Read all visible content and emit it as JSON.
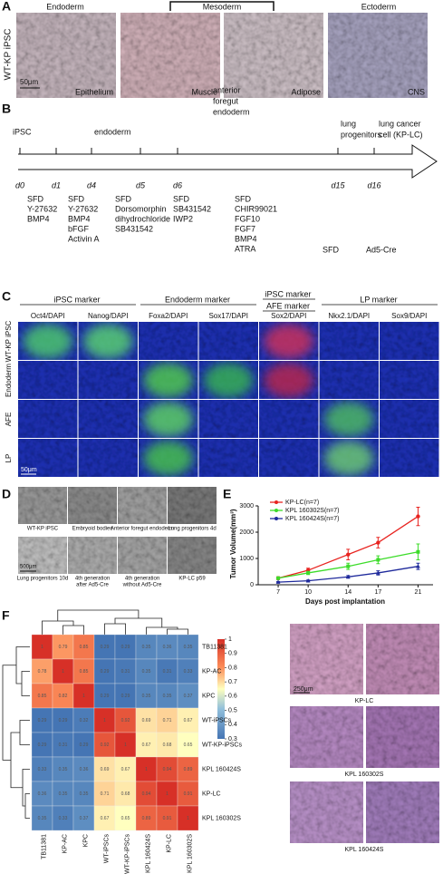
{
  "figure": {
    "panel_labels": [
      "A",
      "B",
      "C",
      "D",
      "E",
      "F"
    ],
    "a": {
      "row_label": "WT-KP iPSC",
      "layers": [
        "Endoderm",
        "Mesoderm",
        "Ectoderm"
      ],
      "tissues": [
        "Epithelium",
        "Muscle",
        "Adipose",
        "CNS"
      ],
      "scale_bar": "50μm"
    },
    "b": {
      "stages": [
        [
          "iPSC"
        ],
        [
          "endoderm"
        ],
        [
          "anterior",
          "foregut",
          "endoderm"
        ],
        [
          "lung",
          "progenitors"
        ],
        [
          "lung cancer",
          "cell (KP-LC)"
        ]
      ],
      "days": [
        "d0",
        "d1",
        "d4",
        "d5",
        "d6",
        "d15",
        "d16"
      ],
      "media": [
        [
          "SFD",
          "Y-27632",
          "BMP4"
        ],
        [
          "SFD",
          "Y-27632",
          "BMP4",
          "bFGF",
          "Activin A"
        ],
        [
          "SFD",
          "Dorsomorphin",
          "dihydrochloride",
          "SB431542"
        ],
        [
          "SFD",
          "SB431542",
          "IWP2"
        ],
        [
          "SFD",
          "CHIR99021",
          "FGF10",
          "FGF7",
          "BMP4",
          "ATRA"
        ],
        [
          "SFD"
        ],
        [
          "Ad5-Cre"
        ]
      ]
    },
    "c": {
      "groups": [
        "iPSC marker",
        "Endoderm marker",
        "iPSC marker",
        "AFE marker",
        "LP marker"
      ],
      "stains": [
        "Oct4/DAPI",
        "Nanog/DAPI",
        "Foxa2/DAPI",
        "Sox17/DAPI",
        "Sox2/DAPI",
        "Nkx2.1/DAPI",
        "Sox9/DAPI"
      ],
      "rows": [
        "WT-KP iPSC",
        "Endoderm",
        "AFE",
        "LP"
      ],
      "scale_bar": "50μm"
    },
    "d": {
      "captions": [
        [
          "WT-KP iPSC"
        ],
        [
          "Embryoid bodies"
        ],
        [
          "Anterior foregut endoderm"
        ],
        [
          "Lung progenitors 4d"
        ],
        [
          "Lung progenitors 10d"
        ],
        [
          "4th generation",
          "after Ad5-Cre"
        ],
        [
          "4th generation",
          "without Ad5-Cre"
        ],
        [
          "KP-LC p59"
        ]
      ],
      "scale_bar": "500μm"
    },
    "f_histology": {
      "samples": [
        "KP-LC",
        "KPL 160302S",
        "KPL 160424S"
      ],
      "scale_bar": "250μm"
    }
  },
  "chart_data": [
    {
      "type": "line",
      "x": [
        7,
        10,
        14,
        17,
        21
      ],
      "xlim": [
        5,
        22.5
      ],
      "xticks": [
        7,
        10,
        14,
        17,
        21
      ],
      "ylim": [
        0,
        3000
      ],
      "yticks": [
        0,
        1000,
        2000,
        3000
      ],
      "x_label": "Days post implantation",
      "y_label": "Tumor Volume(mm³)",
      "legend": "top-left",
      "series": [
        {
          "name": "KP-LC(n=7)",
          "color": "#e8231f",
          "marker": "circle",
          "values": [
            250,
            550,
            1150,
            1600,
            2600
          ],
          "errors": [
            50,
            80,
            200,
            200,
            350
          ]
        },
        {
          "name": "KPL 160302S(n=7)",
          "color": "#3ddc2a",
          "marker": "square",
          "values": [
            250,
            450,
            700,
            950,
            1250
          ],
          "errors": [
            40,
            60,
            120,
            150,
            300
          ]
        },
        {
          "name": "KPL 160424S(n=7)",
          "color": "#1f2a9c",
          "marker": "triangle",
          "values": [
            100,
            150,
            300,
            450,
            700
          ],
          "errors": [
            20,
            30,
            50,
            80,
            120
          ]
        }
      ]
    },
    {
      "type": "heatmap",
      "columns": [
        "TB11381",
        "KP-AC",
        "KPC",
        "WT-iPSCs",
        "WT-KP-iPSCs",
        "KPL 160424S",
        "KP-LC",
        "KPL 160302S"
      ],
      "rows": [
        "TB11381",
        "KP-AC",
        "KPC",
        "WT-iPSCs",
        "WT-KP-iPSCs",
        "KPL 160424S",
        "KP-LC",
        "KPL 160302S"
      ],
      "values": [
        [
          1,
          0.79,
          0.85,
          0.29,
          0.29,
          0.35,
          0.36,
          0.35
        ],
        [
          0.78,
          1,
          0.85,
          0.29,
          0.31,
          0.35,
          0.31,
          0.33
        ],
        [
          0.85,
          0.82,
          1,
          0.29,
          0.29,
          0.35,
          0.35,
          0.37
        ],
        [
          0.29,
          0.29,
          0.32,
          1,
          0.92,
          0.69,
          0.71,
          0.67
        ],
        [
          0.29,
          0.31,
          0.29,
          0.92,
          1,
          0.67,
          0.68,
          0.65
        ],
        [
          0.33,
          0.35,
          0.36,
          0.69,
          0.67,
          1,
          0.94,
          0.89
        ],
        [
          0.36,
          0.35,
          0.35,
          0.71,
          0.68,
          0.94,
          1,
          0.91
        ],
        [
          0.35,
          0.33,
          0.37,
          0.67,
          0.65,
          0.89,
          0.91,
          1
        ]
      ],
      "clim": [
        0.3,
        1
      ],
      "cticks": [
        1,
        0.9,
        0.8,
        0.7,
        0.6,
        0.5,
        0.4,
        0.3
      ]
    }
  ]
}
